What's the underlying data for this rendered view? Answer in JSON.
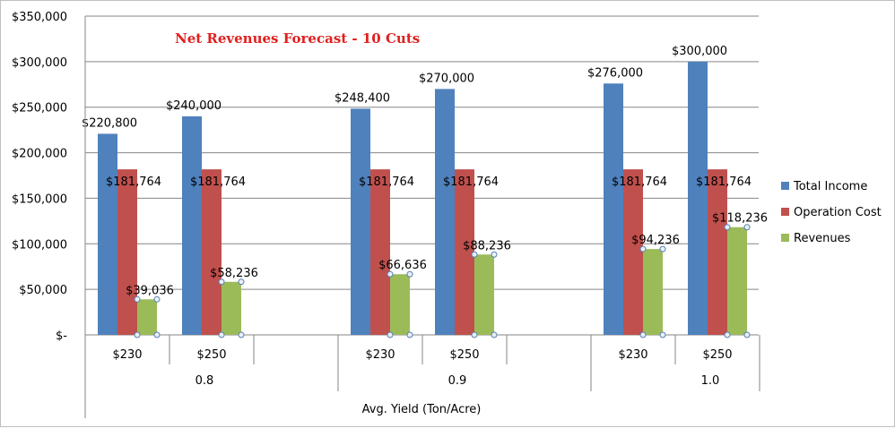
{
  "chart_data": {
    "type": "bar",
    "title": "Net Revenues Forecast - 10 Cuts",
    "xlabel": "Avg. Yield (Ton/Acre)",
    "ylabel": "",
    "ylim": [
      0,
      350000
    ],
    "yticks": [
      0,
      50000,
      100000,
      150000,
      200000,
      250000,
      300000,
      350000
    ],
    "ytick_labels": [
      "$-",
      "$50,000",
      "$100,000",
      "$150,000",
      "$200,000",
      "$250,000",
      "$300,000",
      "$350,000"
    ],
    "groups": [
      {
        "label": "0.8",
        "categories": [
          "$230",
          "$250"
        ]
      },
      {
        "label": "0.9",
        "categories": [
          "$230",
          "$250"
        ]
      },
      {
        "label": "1.0",
        "categories": [
          "$230",
          "$250"
        ]
      }
    ],
    "series": [
      {
        "name": "Total Income",
        "color": "#4f81bd",
        "values": [
          220800,
          240000,
          248400,
          270000,
          276000,
          300000
        ],
        "labels": [
          "$220,800",
          "$240,000",
          "$248,400",
          "$270,000",
          "$276,000",
          "$300,000"
        ]
      },
      {
        "name": "Operation Cost",
        "color": "#c0504d",
        "values": [
          181764,
          181764,
          181764,
          181764,
          181764,
          181764
        ],
        "labels": [
          "$181,764",
          "$181,764",
          "$181,764",
          "$181,764",
          "$181,764",
          "$181,764"
        ]
      },
      {
        "name": "Revenues",
        "color": "#9bbb59",
        "values": [
          39036,
          58236,
          66636,
          88236,
          94236,
          118236
        ],
        "labels": [
          "$39,036",
          "$58,236",
          "$66,636",
          "$88,236",
          "$94,236",
          "$118,236"
        ]
      }
    ],
    "legend": "right",
    "title_color": "#e02020"
  }
}
